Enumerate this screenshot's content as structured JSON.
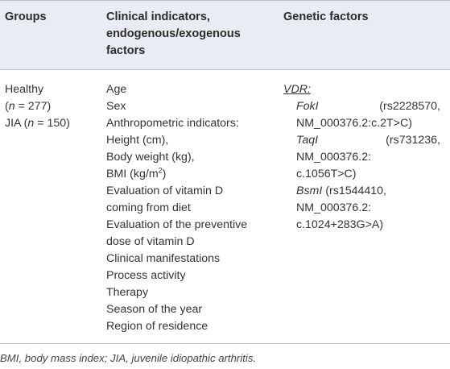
{
  "table": {
    "headers": {
      "groups": "Groups",
      "clinical_line1": "Clinical indicators,",
      "clinical_line2": "endogenous/exogenous",
      "clinical_line3": "factors",
      "genetic": "Genetic factors"
    },
    "groups": {
      "healthy_label": "Healthy",
      "healthy_n_open": "(",
      "healthy_n_var": "n",
      "healthy_n_value": " = 277)",
      "jia_label": "JIA (",
      "jia_n_var": "n",
      "jia_n_value": " = 150)"
    },
    "clinical": [
      "Age",
      "Sex",
      "Anthropometric indicators:",
      "Height (cm),",
      "Body weight (kg),",
      "BMI (kg/m",
      "Evaluation of vitamin D",
      "coming from diet",
      "Evaluation of the preventive",
      "dose of vitamin D",
      "Clinical manifestations",
      "Process activity",
      "Therapy",
      "Season of the year",
      "Region of residence"
    ],
    "bmi_superscript": "2",
    "bmi_close": ")",
    "genetic": {
      "gene": "VDR:",
      "fokl_name": "FokI",
      "fokl_rs": "(rs2228570,",
      "fokl_nm": "NM_000376.2:c.2T>C)",
      "taql_name": "TaqI",
      "taql_rs": "(rs731236,",
      "taql_nm1": "NM_000376.2:",
      "taql_nm2": "c.1056T>C)",
      "bsml_name": "BsmI",
      "bsml_rs": "(rs1544410,",
      "bsml_nm1": "NM_000376.2:",
      "bsml_nm2": "c.1024+283G>A)"
    }
  },
  "footnote": "BMI, body mass index; JIA, juvenile idiopathic arthritis."
}
